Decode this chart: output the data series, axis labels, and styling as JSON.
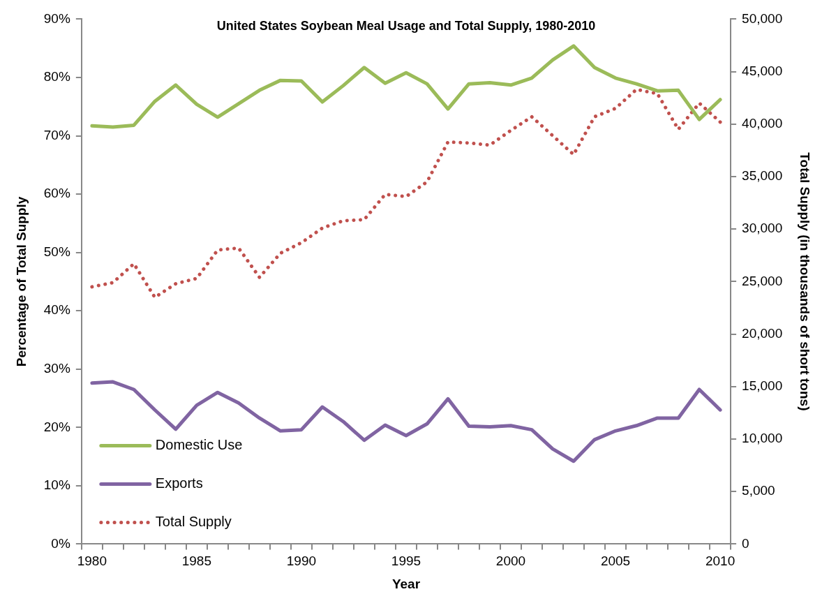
{
  "chart_data": {
    "type": "line",
    "title": "United States Soybean Meal Usage and Total Supply, 1980-2010",
    "xlabel": "Year",
    "ylabel": "Percentage of Total Supply",
    "y2label": "Total Supply (in thousands of short tons)",
    "categories": [
      "1980",
      null,
      null,
      null,
      null,
      "1985",
      null,
      null,
      null,
      null,
      "1990",
      null,
      null,
      null,
      null,
      "1995",
      null,
      null,
      null,
      null,
      "2000",
      null,
      null,
      null,
      null,
      "2005",
      null,
      null,
      null,
      null,
      "2010"
    ],
    "series": [
      {
        "name": "Domestic Use",
        "color": "#9bbb59",
        "line_style": "solid",
        "values": [
          71.7,
          71.5,
          71.8,
          75.9,
          78.7,
          75.4,
          73.2,
          75.5,
          77.8,
          79.5,
          79.4,
          75.8,
          78.6,
          81.7,
          79.0,
          80.8,
          78.9,
          74.6,
          78.9,
          79.1,
          78.7,
          79.9,
          83.0,
          85.4,
          81.7,
          79.9,
          78.9,
          77.7,
          77.8,
          72.8,
          76.2
        ]
      },
      {
        "name": "Exports",
        "color": "#8064a2",
        "line_style": "solid",
        "values": [
          27.6,
          27.8,
          26.5,
          23.0,
          19.7,
          23.8,
          26.0,
          24.2,
          21.6,
          19.4,
          19.6,
          23.5,
          21.0,
          17.8,
          20.4,
          18.6,
          20.6,
          24.9,
          20.2,
          20.1,
          20.3,
          19.6,
          16.3,
          14.2,
          17.9,
          19.4,
          20.3,
          21.6,
          21.6,
          26.5,
          23.0
        ]
      },
      {
        "name": "Total Supply",
        "color": "#c0504d",
        "line_style": "dotted",
        "axis": "y2",
        "values": [
          24500,
          24900,
          26700,
          23500,
          24800,
          25300,
          28000,
          28200,
          25400,
          27700,
          28700,
          30100,
          30800,
          30900,
          33300,
          33100,
          34500,
          38300,
          38200,
          38000,
          39400,
          40700,
          38900,
          37100,
          40700,
          41500,
          43300,
          42900,
          39500,
          42000,
          40200
        ]
      }
    ],
    "ylim": [
      0,
      90
    ],
    "yticks": [
      {
        "value": 0,
        "label": "0%"
      },
      {
        "value": 10,
        "label": "10%"
      },
      {
        "value": 20,
        "label": "20%"
      },
      {
        "value": 30,
        "label": "30%"
      },
      {
        "value": 40,
        "label": "40%"
      },
      {
        "value": 50,
        "label": "50%"
      },
      {
        "value": 60,
        "label": "60%"
      },
      {
        "value": 70,
        "label": "70%"
      },
      {
        "value": 80,
        "label": "80%"
      },
      {
        "value": 90,
        "label": "90%"
      }
    ],
    "y2lim": [
      0,
      50000
    ],
    "y2ticks": [
      0,
      {
        "value": 5000,
        "label": "5,000"
      },
      {
        "value": 10000,
        "label": "10,000"
      },
      {
        "value": 15000,
        "label": "15,000"
      },
      {
        "value": 20000,
        "label": "20,000"
      },
      {
        "value": 25000,
        "label": "25,000"
      },
      {
        "value": 30000,
        "label": "30,000"
      },
      {
        "value": 35000,
        "label": "35,000"
      },
      {
        "value": 40000,
        "label": "40,000"
      },
      {
        "value": 45000,
        "label": "45,000"
      },
      {
        "value": 50000,
        "label": "50,000"
      }
    ],
    "grid": false,
    "legend": "bottom left",
    "marker": "none"
  }
}
